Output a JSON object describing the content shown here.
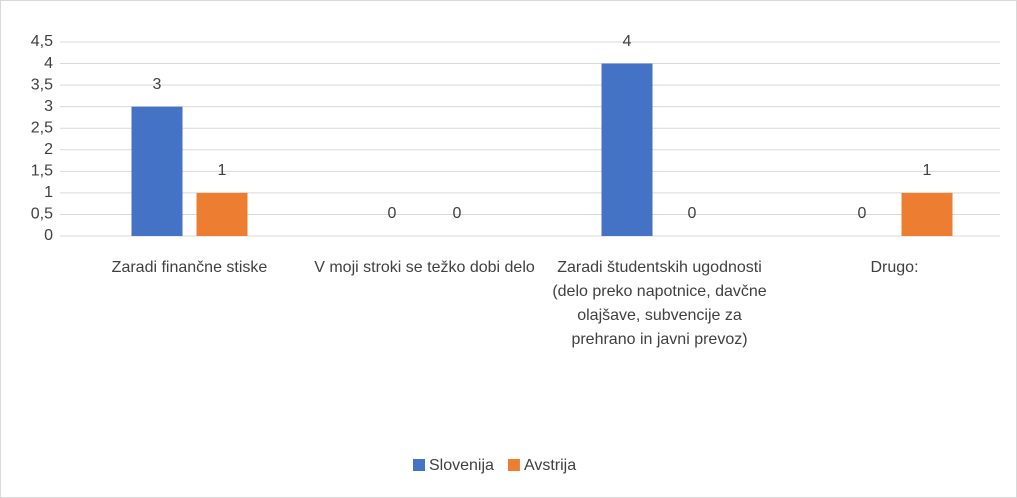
{
  "chart_data": {
    "type": "bar",
    "categories": [
      "Zaradi finančne stiske",
      "V moji stroki se težko dobi delo",
      "Zaradi študentskih ugodnosti (delo preko napotnice, davčne olajšave, subvencije za prehrano in javni prevoz)",
      "Drugo:"
    ],
    "series": [
      {
        "name": "Slovenija",
        "color": "#4472c4",
        "values": [
          3,
          0,
          4,
          0
        ]
      },
      {
        "name": "Avstrija",
        "color": "#ed7d31",
        "values": [
          1,
          0,
          0,
          1
        ]
      }
    ],
    "ylim": [
      0,
      4.5
    ],
    "yticks": [
      0,
      {
        "value": 0.5,
        "label": "0,5"
      },
      1,
      {
        "value": 1.5,
        "label": "1,5"
      },
      2,
      {
        "value": 2.5,
        "label": "2,5"
      },
      3,
      {
        "value": 3.5,
        "label": "3,5"
      },
      4,
      {
        "value": 4.5,
        "label": "4,5"
      }
    ],
    "grid": true,
    "legend": "bottom"
  }
}
